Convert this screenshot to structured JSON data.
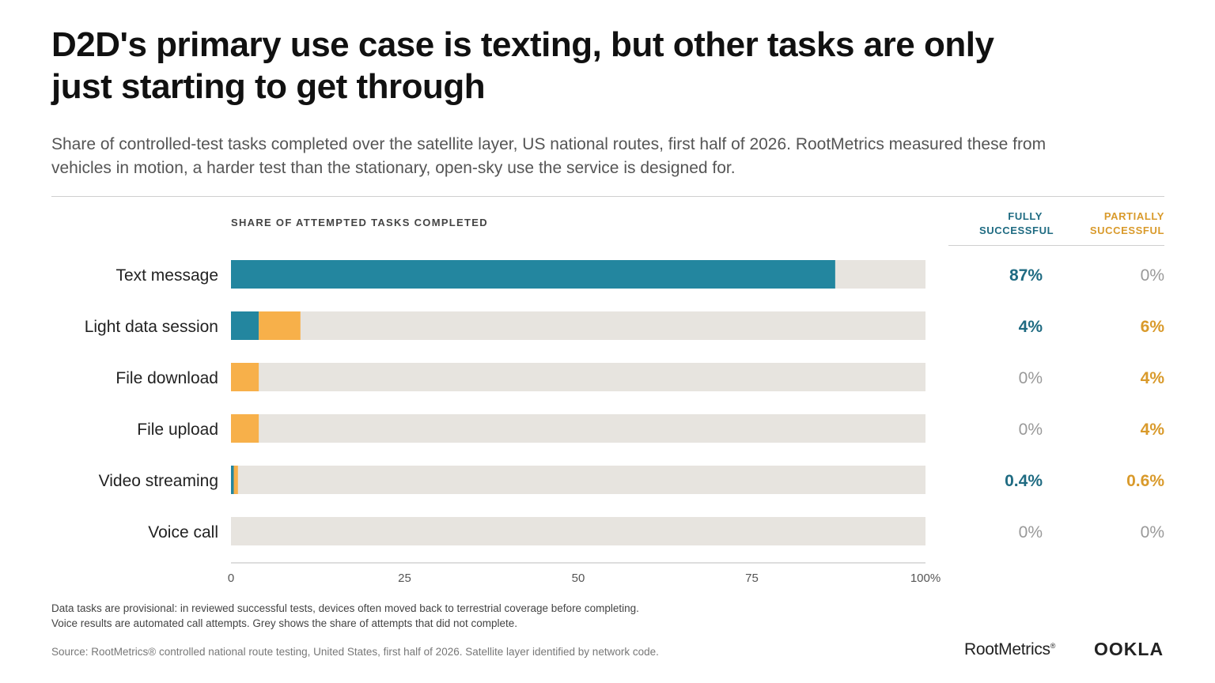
{
  "title": "D2D's primary use case is texting, but other tasks are only just starting to get through",
  "subtitle": "Share of controlled-test tasks completed over the satellite layer, US national routes, first half of 2026. RootMetrics measured these from vehicles in motion, a harder test than the stationary, open-sky use the service is designed for.",
  "columns": {
    "fully": "FULLY SUCCESSFUL",
    "partially": "PARTIALLY SUCCESSFUL"
  },
  "footnote_lines": [
    "Data tasks are provisional: in reviewed successful tests, devices often moved back to terrestrial coverage before completing.",
    "Voice results are automated call attempts. Grey shows the share of attempts that did not complete."
  ],
  "source": "Source: RootMetrics® controlled national route testing, United States, first half of 2026. Satellite layer identified by network code.",
  "logos": {
    "rootmetrics": "RootMetrics",
    "ookla": "OOKLA"
  },
  "colors": {
    "fully": "#23869f",
    "partially": "#f7b04a",
    "remainder": "#e7e4df",
    "fully_text": "#1f6b82",
    "partially_text": "#d99a2b",
    "zero_text": "#999999"
  },
  "chart_data": {
    "type": "bar",
    "orientation": "horizontal",
    "stacked": true,
    "axis_title": "SHARE OF ATTEMPTED TASKS COMPLETED",
    "categories": [
      "Text message",
      "Light data session",
      "File download",
      "File upload",
      "Video streaming",
      "Voice call"
    ],
    "series": [
      {
        "name": "FULLY SUCCESSFUL",
        "values": [
          87,
          4,
          0,
          0,
          0.4,
          0
        ]
      },
      {
        "name": "PARTIALLY SUCCESSFUL",
        "values": [
          0,
          6,
          4,
          4,
          0.6,
          0
        ]
      }
    ],
    "value_labels": {
      "fully": [
        "87%",
        "4%",
        "0%",
        "0%",
        "0.4%",
        "0%"
      ],
      "partially": [
        "0%",
        "6%",
        "4%",
        "4%",
        "0.6%",
        "0%"
      ]
    },
    "xlim": [
      0,
      100
    ],
    "xticks": [
      "0",
      "25",
      "50",
      "75",
      "100%"
    ],
    "grid": false
  }
}
